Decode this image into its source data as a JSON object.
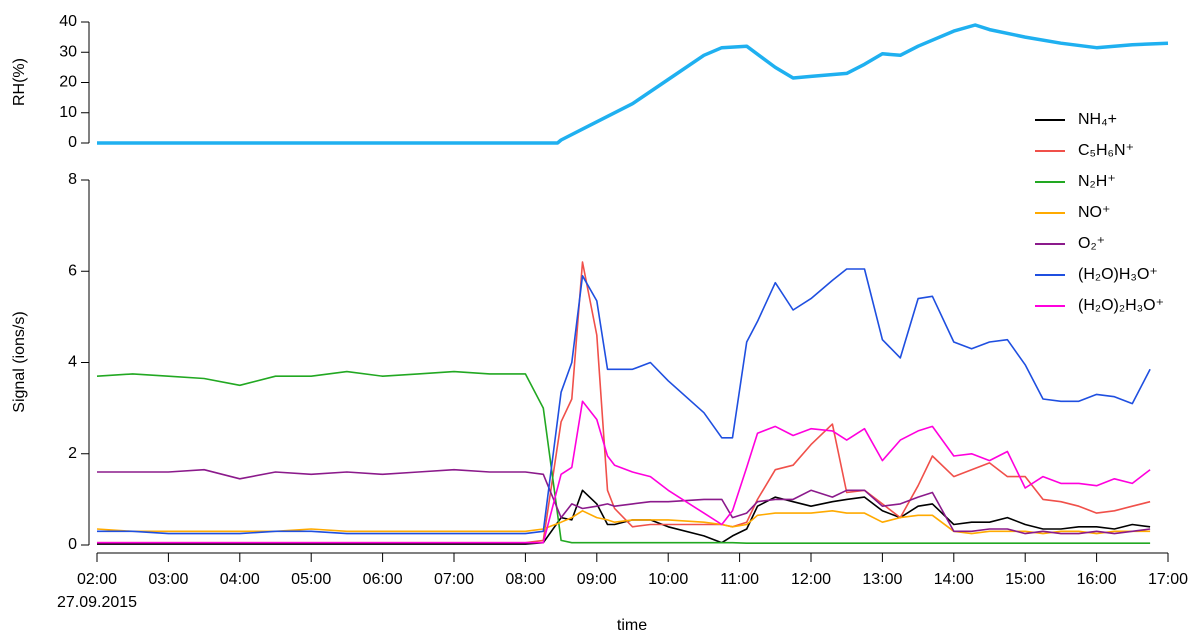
{
  "chart_data": [
    {
      "type": "line",
      "y_label": "RH(%)",
      "x": [
        2,
        8.45,
        8.5,
        9,
        9.5,
        10,
        10.5,
        10.75,
        11.1,
        11.5,
        11.75,
        12,
        12.5,
        12.75,
        13,
        13.25,
        13.5,
        14,
        14.3,
        14.5,
        15,
        15.5,
        16,
        16.5,
        17
      ],
      "series": [
        {
          "name": "RH",
          "color": "#1fb0f0",
          "values": [
            0,
            0,
            1,
            7,
            13,
            21,
            29,
            31.5,
            32,
            25,
            21.5,
            22,
            23,
            26,
            29.5,
            29,
            32,
            37,
            39,
            37.5,
            35,
            33,
            31.5,
            32.5,
            33
          ]
        }
      ],
      "xlim": [
        2,
        17
      ],
      "ylim": [
        0,
        40
      ],
      "yticks": [
        0,
        10,
        20,
        30,
        40
      ]
    },
    {
      "type": "line",
      "y_label": "Signal (ions/s)",
      "x_label": "time",
      "date_label": "27.09.2015",
      "legend": "upper right",
      "x": [
        2,
        2.5,
        3,
        3.5,
        4,
        4.5,
        5,
        5.5,
        6,
        6.5,
        7,
        7.5,
        8,
        8.25,
        8.5,
        8.65,
        8.8,
        9,
        9.15,
        9.25,
        9.5,
        9.75,
        10,
        10.5,
        10.75,
        10.9,
        11.1,
        11.25,
        11.5,
        11.75,
        12,
        12.3,
        12.5,
        12.75,
        13,
        13.25,
        13.5,
        13.7,
        14,
        14.25,
        14.5,
        14.75,
        15,
        15.25,
        15.5,
        15.75,
        16,
        16.25,
        16.5,
        16.75
      ],
      "series": [
        {
          "name": "NH₄+",
          "color": "#000000",
          "values": [
            0.02,
            0.02,
            0.02,
            0.02,
            0.02,
            0.02,
            0.02,
            0.02,
            0.02,
            0.02,
            0.02,
            0.02,
            0.02,
            0.05,
            0.6,
            0.55,
            1.2,
            0.9,
            0.45,
            0.45,
            0.55,
            0.55,
            0.4,
            0.2,
            0.05,
            0.2,
            0.35,
            0.85,
            1.05,
            0.95,
            0.85,
            0.95,
            1.0,
            1.05,
            0.75,
            0.6,
            0.85,
            0.9,
            0.45,
            0.5,
            0.5,
            0.6,
            0.45,
            0.35,
            0.35,
            0.4,
            0.4,
            0.35,
            0.45,
            0.4
          ]
        },
        {
          "name": "C₅H₆N⁺",
          "color": "#f0504a",
          "values": [
            0.05,
            0.05,
            0.05,
            0.05,
            0.05,
            0.05,
            0.05,
            0.05,
            0.05,
            0.05,
            0.05,
            0.05,
            0.05,
            0.1,
            2.7,
            3.2,
            6.2,
            4.6,
            1.2,
            0.8,
            0.4,
            0.45,
            0.45,
            0.45,
            0.45,
            0.4,
            0.5,
            1.0,
            1.65,
            1.75,
            2.2,
            2.65,
            1.15,
            1.2,
            0.9,
            0.6,
            1.3,
            1.95,
            1.5,
            1.65,
            1.8,
            1.5,
            1.5,
            1.0,
            0.95,
            0.85,
            0.7,
            0.75,
            0.85,
            0.95
          ]
        },
        {
          "name": "N₂H⁺",
          "color": "#22a822",
          "values": [
            3.7,
            3.75,
            3.7,
            3.65,
            3.5,
            3.7,
            3.7,
            3.8,
            3.7,
            3.75,
            3.8,
            3.75,
            3.75,
            3.0,
            0.1,
            0.05,
            0.05,
            0.05,
            0.05,
            0.05,
            0.05,
            0.05,
            0.05,
            0.05,
            0.05,
            0.05,
            0.04,
            0.04,
            0.04,
            0.04,
            0.04,
            0.04,
            0.04,
            0.04,
            0.04,
            0.04,
            0.04,
            0.04,
            0.04,
            0.04,
            0.04,
            0.04,
            0.04,
            0.04,
            0.04,
            0.04,
            0.04,
            0.04,
            0.04,
            0.04
          ]
        },
        {
          "name": "NO⁺",
          "color": "#ffaa00",
          "values": [
            0.35,
            0.3,
            0.3,
            0.3,
            0.3,
            0.3,
            0.35,
            0.3,
            0.3,
            0.3,
            0.3,
            0.3,
            0.3,
            0.35,
            0.5,
            0.6,
            0.75,
            0.6,
            0.55,
            0.5,
            0.55,
            0.55,
            0.55,
            0.5,
            0.45,
            0.4,
            0.45,
            0.65,
            0.7,
            0.7,
            0.7,
            0.75,
            0.7,
            0.7,
            0.5,
            0.6,
            0.65,
            0.65,
            0.3,
            0.25,
            0.3,
            0.3,
            0.3,
            0.25,
            0.3,
            0.3,
            0.25,
            0.3,
            0.3,
            0.3
          ]
        },
        {
          "name": "O₂⁺",
          "color": "#8b1a8b",
          "values": [
            1.6,
            1.6,
            1.6,
            1.65,
            1.45,
            1.6,
            1.55,
            1.6,
            1.55,
            1.6,
            1.65,
            1.6,
            1.6,
            1.55,
            0.6,
            0.9,
            0.8,
            0.85,
            0.9,
            0.85,
            0.9,
            0.95,
            0.95,
            1.0,
            1.0,
            0.6,
            0.7,
            0.95,
            1.0,
            1.0,
            1.2,
            1.05,
            1.2,
            1.2,
            0.85,
            0.9,
            1.05,
            1.15,
            0.3,
            0.3,
            0.35,
            0.35,
            0.25,
            0.3,
            0.25,
            0.25,
            0.3,
            0.25,
            0.3,
            0.35
          ]
        },
        {
          "name": "(H₂O)H₃O⁺",
          "color": "#1f4fe0",
          "values": [
            0.3,
            0.3,
            0.25,
            0.25,
            0.25,
            0.3,
            0.3,
            0.25,
            0.25,
            0.25,
            0.25,
            0.25,
            0.25,
            0.3,
            3.35,
            4.0,
            5.9,
            5.35,
            3.85,
            3.85,
            3.85,
            4.0,
            3.6,
            2.9,
            2.35,
            2.35,
            4.45,
            4.9,
            5.75,
            5.15,
            5.4,
            5.8,
            6.05,
            6.05,
            4.5,
            4.1,
            5.4,
            5.45,
            4.45,
            4.3,
            4.45,
            4.5,
            3.95,
            3.2,
            3.15,
            3.15,
            3.3,
            3.25,
            3.1,
            3.85
          ]
        },
        {
          "name": "(H₂O)₂H₃O⁺",
          "color": "#ff00dd",
          "values": [
            0.05,
            0.05,
            0.05,
            0.05,
            0.05,
            0.05,
            0.05,
            0.05,
            0.05,
            0.05,
            0.05,
            0.05,
            0.05,
            0.05,
            1.55,
            1.7,
            3.15,
            2.75,
            1.95,
            1.75,
            1.6,
            1.5,
            1.2,
            0.7,
            0.45,
            0.75,
            1.7,
            2.45,
            2.6,
            2.4,
            2.55,
            2.5,
            2.3,
            2.55,
            1.85,
            2.3,
            2.5,
            2.6,
            1.95,
            2.0,
            1.85,
            2.05,
            1.25,
            1.5,
            1.35,
            1.35,
            1.3,
            1.45,
            1.35,
            1.65
          ]
        }
      ],
      "xlim": [
        2,
        17
      ],
      "xticks": [
        {
          "value": 2,
          "label": "02:00"
        },
        {
          "value": 3,
          "label": "03:00"
        },
        {
          "value": 4,
          "label": "04:00"
        },
        {
          "value": 5,
          "label": "05:00"
        },
        {
          "value": 6,
          "label": "06:00"
        },
        {
          "value": 7,
          "label": "07:00"
        },
        {
          "value": 8,
          "label": "08:00"
        },
        {
          "value": 9,
          "label": "09:00"
        },
        {
          "value": 10,
          "label": "10:00"
        },
        {
          "value": 11,
          "label": "11:00"
        },
        {
          "value": 12,
          "label": "12:00"
        },
        {
          "value": 13,
          "label": "13:00"
        },
        {
          "value": 14,
          "label": "14:00"
        },
        {
          "value": 15,
          "label": "15:00"
        },
        {
          "value": 16,
          "label": "16:00"
        },
        {
          "value": 17,
          "label": "17:00"
        }
      ],
      "ylim": [
        0,
        8
      ],
      "yticks": [
        0,
        2,
        4,
        6,
        8
      ]
    }
  ]
}
